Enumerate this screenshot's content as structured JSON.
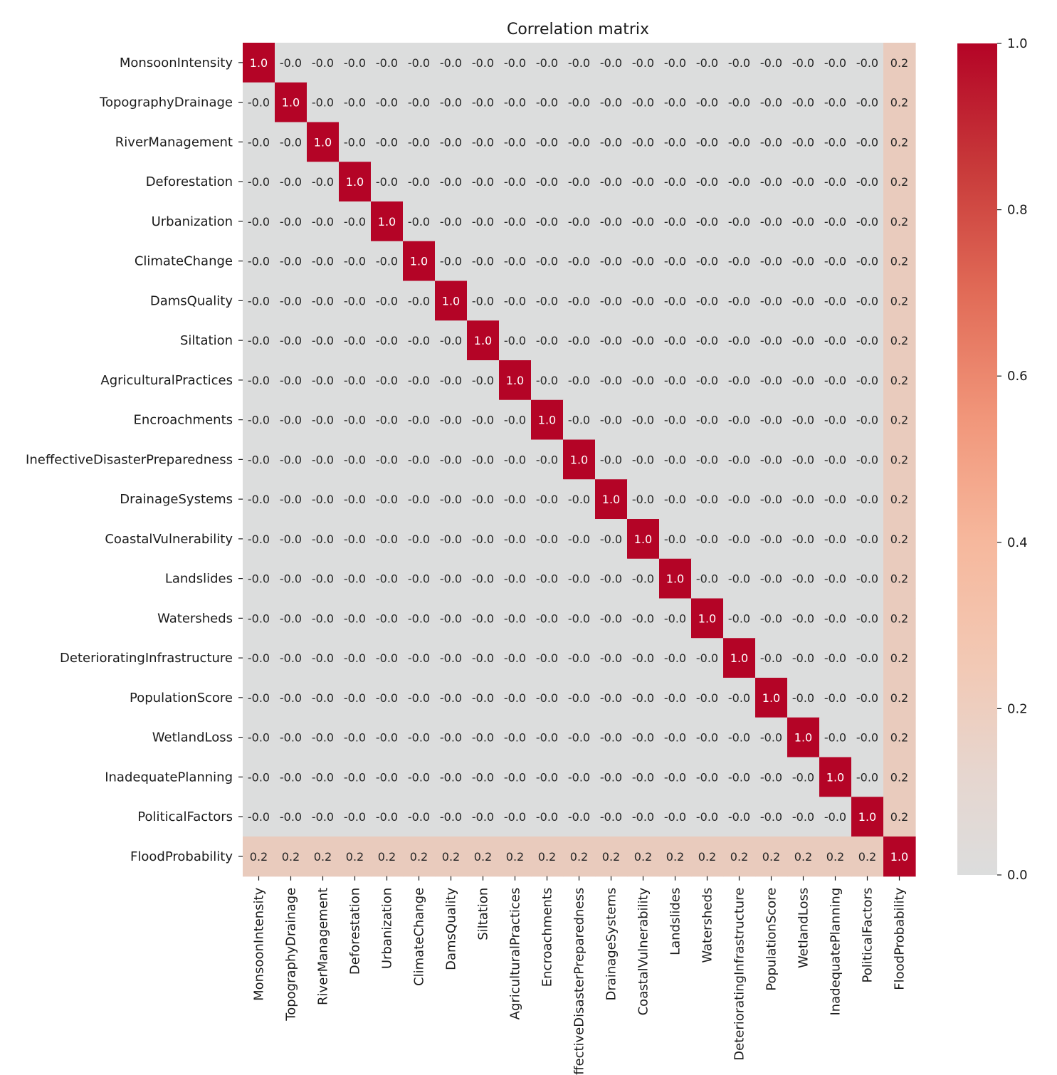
{
  "chart_data": {
    "type": "heatmap",
    "title": "Correlation matrix",
    "labels": [
      "MonsoonIntensity",
      "TopographyDrainage",
      "RiverManagement",
      "Deforestation",
      "Urbanization",
      "ClimateChange",
      "DamsQuality",
      "Siltation",
      "AgriculturalPractices",
      "Encroachments",
      "IneffectiveDisasterPreparedness",
      "DrainageSystems",
      "CoastalVulnerability",
      "Landslides",
      "Watersheds",
      "DeterioratingInfrastructure",
      "PopulationScore",
      "WetlandLoss",
      "InadequatePlanning",
      "PoliticalFactors",
      "FloodProbability"
    ],
    "offdiagonal_value": -0.0,
    "offdiagonal_label": "-0.0",
    "diagonal_value": 1.0,
    "diagonal_label": "1.0",
    "target_variable": "FloodProbability",
    "target_correlation": 0.2,
    "target_label": "0.2",
    "colorbar": {
      "min": 0.0,
      "max": 1.0,
      "ticks": [
        0.0,
        0.2,
        0.4,
        0.6,
        0.8,
        1.0
      ],
      "tick_labels": [
        "0.0",
        "0.2",
        "0.4",
        "0.6",
        "0.8",
        "1.0"
      ]
    },
    "colormap": {
      "low": "#dcdddd",
      "mid": "#f6b89d",
      "high": "#b40426"
    },
    "annotations": true,
    "grid": false
  }
}
